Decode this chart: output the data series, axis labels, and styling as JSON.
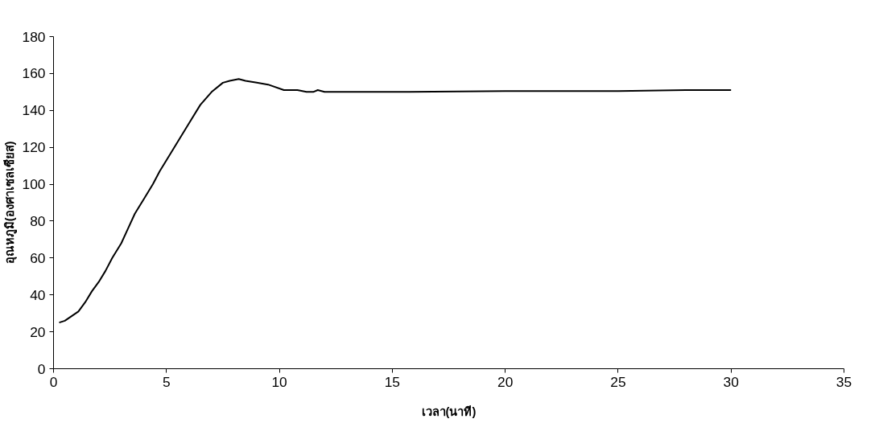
{
  "chart_data": {
    "type": "line",
    "xlabel": "เวลา(นาที)",
    "ylabel": "อุณหภูมิ(องศาเซลเซียส)",
    "xlim": [
      0,
      35
    ],
    "xticks": [
      0,
      5,
      10,
      15,
      20,
      25,
      30,
      35
    ],
    "ylim": [
      0,
      180
    ],
    "yticks": [
      0,
      20,
      40,
      60,
      80,
      100,
      120,
      140,
      160,
      180
    ],
    "grid": false,
    "marker": "none",
    "line_style": "solid",
    "series": [
      {
        "color": "#000000",
        "x": [
          0.25,
          0.5,
          0.8,
          1.1,
          1.4,
          1.7,
          2.0,
          2.3,
          2.6,
          3.0,
          3.3,
          3.6,
          4.0,
          4.4,
          4.7,
          5.0,
          5.5,
          6.0,
          6.5,
          7.0,
          7.5,
          7.8,
          8.2,
          8.5,
          9.0,
          9.5,
          10.2,
          10.8,
          11.2,
          11.5,
          11.7,
          12.0,
          15,
          20,
          25,
          28,
          30
        ],
        "values": [
          25,
          26,
          28.5,
          31,
          36,
          42,
          47,
          53,
          60,
          68,
          76,
          84,
          92,
          100,
          107,
          113,
          123,
          133,
          143,
          150,
          155,
          156,
          157,
          156,
          155,
          154,
          151,
          151,
          150,
          150,
          151,
          150,
          150,
          150.5,
          150.5,
          151,
          151
        ]
      }
    ]
  }
}
